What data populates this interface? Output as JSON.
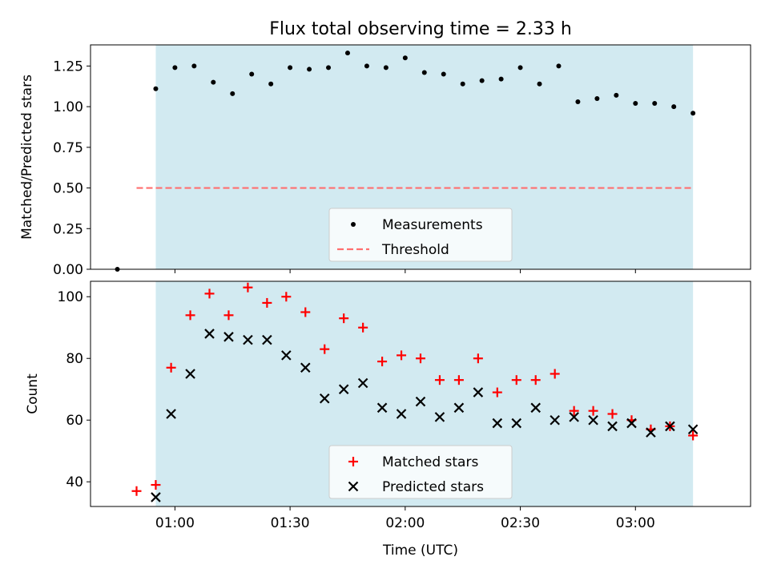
{
  "title": "Flux total observing time = 2.33 h",
  "colors": {
    "shade": "#add8e6",
    "threshold": "#ff6f6f",
    "matched": "#ff0000",
    "predicted": "#000000",
    "measurement": "#000000"
  },
  "chart_data": [
    {
      "type": "scatter",
      "ylabel": "Matched/Predicted stars",
      "ylim": [
        0,
        1.38
      ],
      "yticks": [
        0.0,
        0.25,
        0.5,
        0.75,
        1.0,
        1.25
      ],
      "ytick_labels": [
        "0.00",
        "0.25",
        "0.50",
        "0.75",
        "1.00",
        "1.25"
      ],
      "x_minutes": [
        55,
        60,
        65,
        70,
        75,
        80,
        85,
        90,
        95,
        100,
        105,
        110,
        115,
        120,
        125,
        130,
        135,
        140,
        145,
        150,
        155,
        160,
        165,
        170,
        175,
        180,
        185
      ],
      "shaded_range": [
        "00:55",
        "03:15"
      ],
      "series": [
        {
          "name": "Measurements",
          "x": [
            "00:45",
            "00:55",
            "01:00",
            "01:05",
            "01:10",
            "01:15",
            "01:20",
            "01:25",
            "01:30",
            "01:35",
            "01:40",
            "01:45",
            "01:50",
            "01:55",
            "02:00",
            "02:05",
            "02:10",
            "02:15",
            "02:20",
            "02:25",
            "02:30",
            "02:35",
            "02:40",
            "02:45",
            "02:50",
            "02:55",
            "03:00",
            "03:05",
            "03:10",
            "03:15"
          ],
          "y": [
            0.0,
            1.11,
            1.24,
            1.25,
            1.15,
            1.08,
            1.2,
            1.14,
            1.24,
            1.23,
            1.24,
            1.33,
            1.25,
            1.24,
            1.3,
            1.21,
            1.2,
            1.14,
            1.16,
            1.17,
            1.24,
            1.14,
            1.25,
            1.03,
            1.05,
            1.07,
            1.02,
            1.02,
            1.0,
            0.96
          ]
        },
        {
          "name": "Threshold",
          "x": [
            "00:50",
            "03:15"
          ],
          "y": [
            0.5,
            0.5
          ]
        }
      ],
      "legend": "lower-center"
    },
    {
      "type": "scatter",
      "xlabel": "Time (UTC)",
      "ylabel": "Count",
      "ylim": [
        32,
        105
      ],
      "yticks": [
        40,
        60,
        80,
        100
      ],
      "xlim": [
        "00:38",
        "03:30"
      ],
      "xticks": [
        "01:00",
        "01:30",
        "02:00",
        "02:30",
        "03:00"
      ],
      "shaded_range": [
        "00:55",
        "03:15"
      ],
      "series": [
        {
          "name": "Matched stars",
          "x": [
            "00:50",
            "00:55",
            "00:59",
            "01:04",
            "01:09",
            "01:14",
            "01:19",
            "01:24",
            "01:29",
            "01:34",
            "01:39",
            "01:44",
            "01:49",
            "01:54",
            "01:59",
            "02:04",
            "02:09",
            "02:14",
            "02:19",
            "02:24",
            "02:29",
            "02:34",
            "02:39",
            "02:44",
            "02:49",
            "02:54",
            "02:59",
            "03:04",
            "03:09",
            "03:15"
          ],
          "y": [
            37,
            39,
            77,
            94,
            101,
            94,
            103,
            98,
            100,
            95,
            83,
            93,
            90,
            79,
            81,
            80,
            73,
            73,
            80,
            69,
            73,
            73,
            75,
            63,
            63,
            62,
            60,
            57,
            58,
            55
          ]
        },
        {
          "name": "Predicted stars",
          "x": [
            "00:55",
            "00:59",
            "01:04",
            "01:09",
            "01:14",
            "01:19",
            "01:24",
            "01:29",
            "01:34",
            "01:39",
            "01:44",
            "01:49",
            "01:54",
            "01:59",
            "02:04",
            "02:09",
            "02:14",
            "02:19",
            "02:24",
            "02:29",
            "02:34",
            "02:39",
            "02:44",
            "02:49",
            "02:54",
            "02:59",
            "03:04",
            "03:09",
            "03:15"
          ],
          "y": [
            35,
            62,
            75,
            88,
            87,
            86,
            86,
            81,
            77,
            67,
            70,
            72,
            64,
            62,
            66,
            61,
            64,
            69,
            59,
            59,
            64,
            60,
            61,
            60,
            58,
            59,
            56,
            58,
            57
          ]
        }
      ],
      "legend": "lower-center"
    }
  ]
}
